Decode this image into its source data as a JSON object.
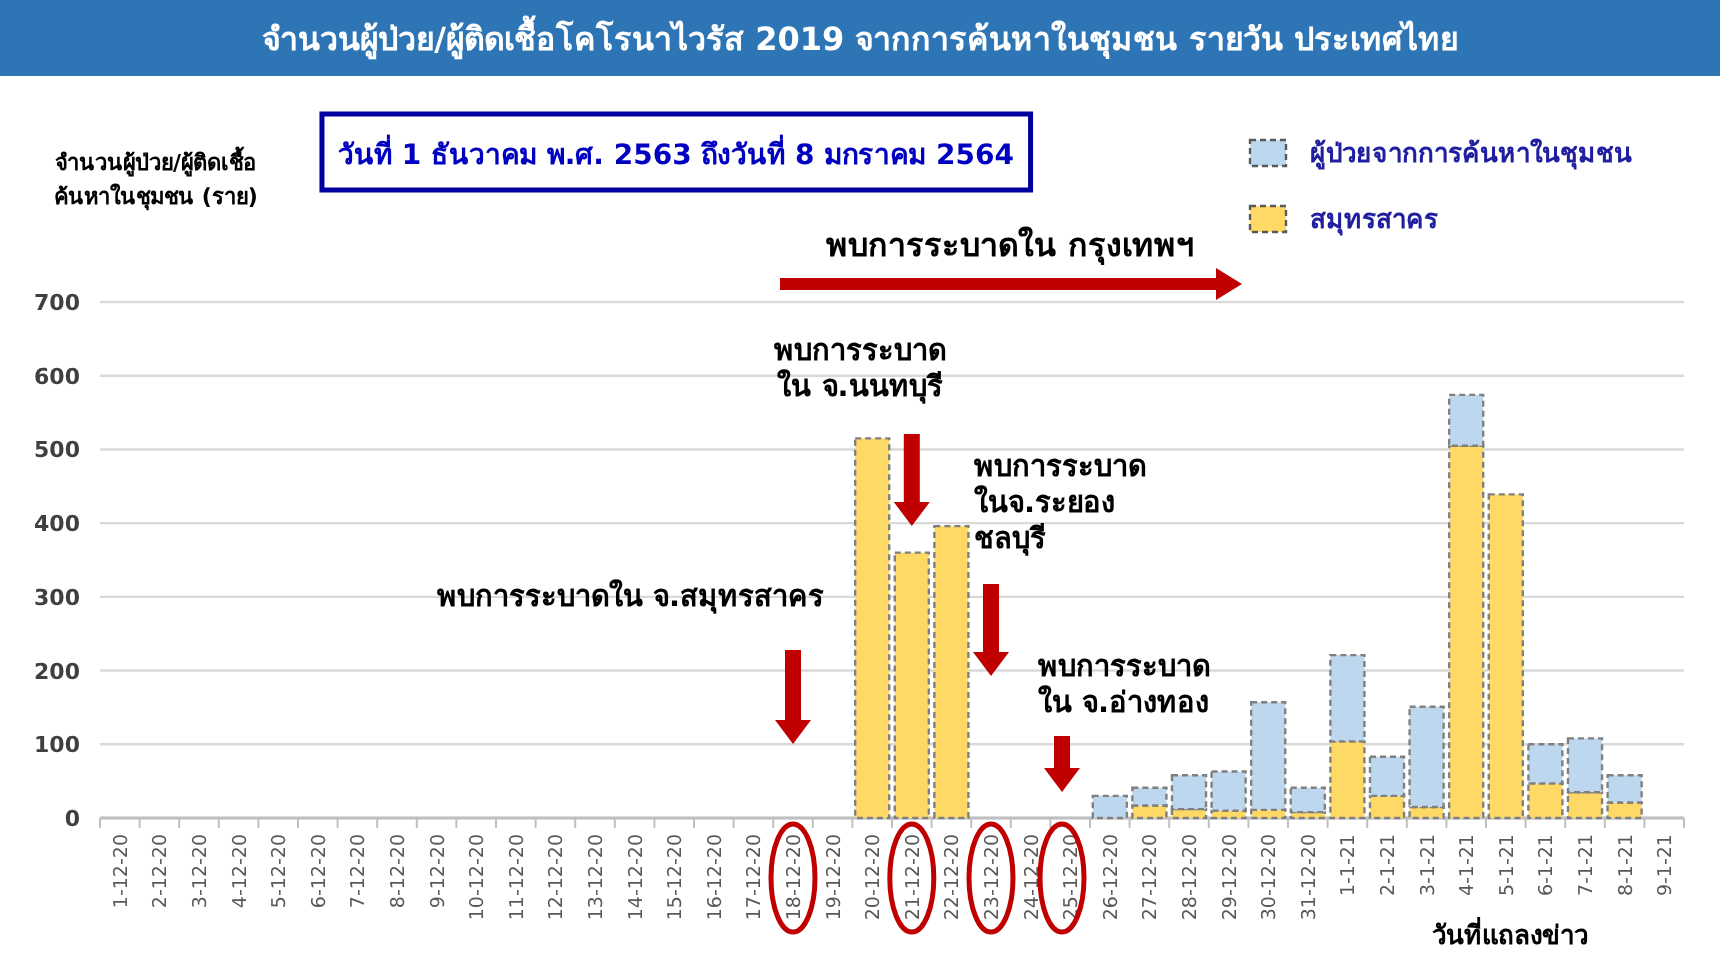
{
  "chart_data": {
    "type": "bar",
    "title": "จำนวนผู้ป่วย/ผู้ติดเชื้อโคโรนาไวรัส 2019 จากการค้นหาในชุมชน รายวัน  ประเทศไทย",
    "subtitle": "วันที่ 1 ธันวาคม พ.ศ. 2563 ถึงวันที่ 8 มกราคม 2564",
    "ylabel": "จำนวนผู้ป่วย/ผู้ติดเชื้อ\nค้นหาในชุมชน (ราย)",
    "xlabel": "วันที่แถลงข่าว",
    "categories": [
      "1-12-20",
      "2-12-20",
      "3-12-20",
      "4-12-20",
      "5-12-20",
      "6-12-20",
      "7-12-20",
      "8-12-20",
      "9-12-20",
      "10-12-20",
      "11-12-20",
      "12-12-20",
      "13-12-20",
      "14-12-20",
      "15-12-20",
      "16-12-20",
      "17-12-20",
      "18-12-20",
      "19-12-20",
      "20-12-20",
      "21-12-20",
      "22-12-20",
      "23-12-20",
      "24-12-20",
      "25-12-20",
      "26-12-20",
      "27-12-20",
      "28-12-20",
      "29-12-20",
      "30-12-20",
      "31-12-20",
      "1-1-21",
      "2-1-21",
      "3-1-21",
      "4-1-21",
      "5-1-21",
      "6-1-21",
      "7-1-21",
      "8-1-21",
      "9-1-21"
    ],
    "series": [
      {
        "name": "สมุทรสาคร",
        "color": "#ffd966",
        "values": [
          0,
          0,
          0,
          0,
          0,
          0,
          0,
          0,
          0,
          0,
          0,
          0,
          0,
          0,
          0,
          0,
          0,
          0,
          0,
          515,
          360,
          396,
          0,
          0,
          0,
          0,
          17,
          12,
          10,
          11,
          8,
          104,
          30,
          15,
          505,
          439,
          47,
          35,
          21,
          0
        ]
      },
      {
        "name": "ผู้ป่วยจากการค้นหาในชุมชน",
        "color": "#bdd7ee",
        "values": [
          0,
          0,
          0,
          0,
          0,
          0,
          0,
          0,
          0,
          0,
          0,
          0,
          0,
          0,
          0,
          0,
          0,
          0,
          0,
          0,
          0,
          0,
          0,
          0,
          0,
          30,
          24,
          46,
          53,
          146,
          33,
          117,
          53,
          136,
          69,
          0,
          53,
          73,
          37,
          0
        ]
      }
    ],
    "stacked": true,
    "ylim": [
      0,
      700
    ],
    "yticks": [
      0,
      100,
      200,
      300,
      400,
      500,
      600,
      700
    ],
    "grid": "y",
    "legend": "top right",
    "annotations": [
      "พบการระบาดใน กรุงเทพฯ",
      "พบการระบาดใน จ.สมุทรสาคร",
      "พบการระบาด\nใน จ.นนทบุรี",
      "พบการระบาด\nในจ.ระยอง\nชลบุรี",
      "พบการระบาด\nใน จ.อ่างทอง"
    ]
  }
}
